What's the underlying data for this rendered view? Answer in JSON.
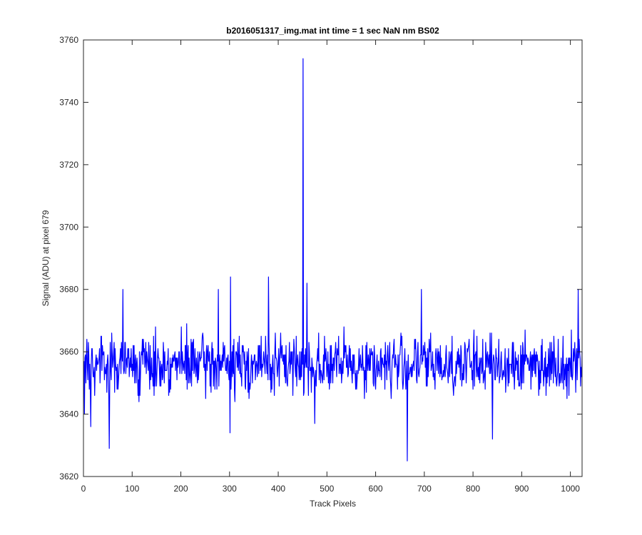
{
  "chart_data": {
    "type": "line",
    "title": "b2016051317_img.mat int time = 1 sec  NaN nm BS02",
    "xlabel": "Track Pixels",
    "ylabel": "Signal (ADU) at pixel 679",
    "xlim": [
      0,
      1024
    ],
    "ylim": [
      3620,
      3760
    ],
    "xticks": [
      0,
      100,
      200,
      300,
      400,
      500,
      600,
      700,
      800,
      900,
      1000
    ],
    "yticks": [
      3620,
      3640,
      3660,
      3680,
      3700,
      3720,
      3740,
      3760
    ],
    "grid": false,
    "legend": "none",
    "series": [
      {
        "color": "#0000ff",
        "noise": {
          "count": 1024,
          "mean": 3656,
          "spread": 8
        },
        "spikes": [
          {
            "x": 1,
            "y": 3640
          },
          {
            "x": 4,
            "y": 3650
          },
          {
            "x": 9,
            "y": 3663
          },
          {
            "x": 14,
            "y": 3636
          },
          {
            "x": 52,
            "y": 3629
          },
          {
            "x": 80,
            "y": 3680
          },
          {
            "x": 276,
            "y": 3680
          },
          {
            "x": 300,
            "y": 3634
          },
          {
            "x": 301,
            "y": 3684
          },
          {
            "x": 379,
            "y": 3684
          },
          {
            "x": 450,
            "y": 3754
          },
          {
            "x": 458,
            "y": 3682
          },
          {
            "x": 474,
            "y": 3637
          },
          {
            "x": 664,
            "y": 3625
          },
          {
            "x": 693,
            "y": 3680
          },
          {
            "x": 839,
            "y": 3632
          },
          {
            "x": 1015,
            "y": 3680
          }
        ]
      }
    ]
  }
}
